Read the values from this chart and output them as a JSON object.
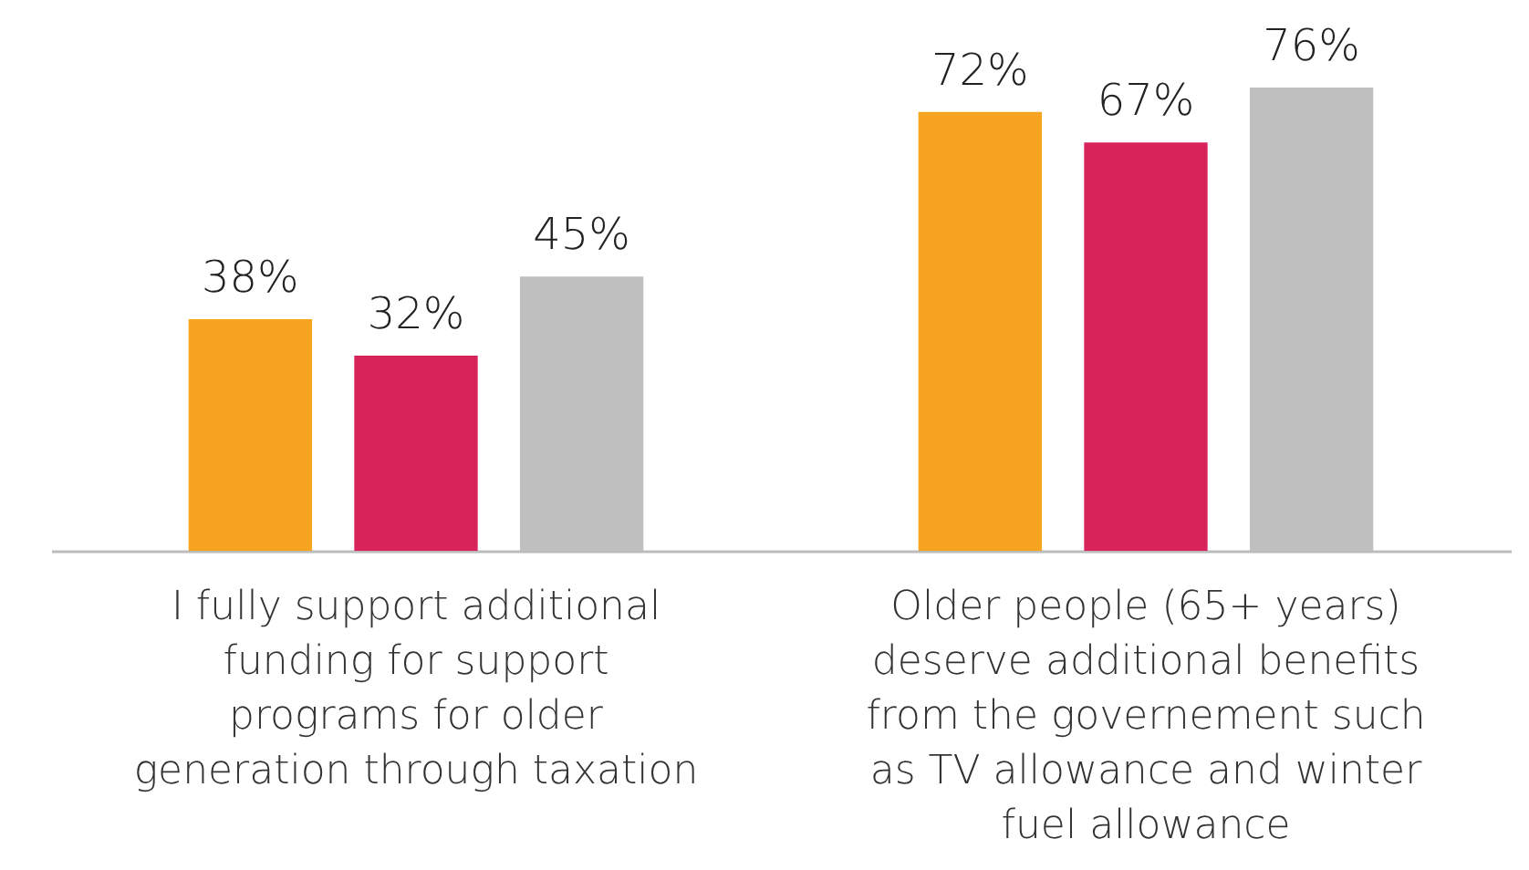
{
  "chart_data": {
    "type": "bar",
    "categories": [
      "I fully support additional funding for support programs for older generation through taxation",
      "Older people (65+ years) deserve additional benefits from the governement such as TV allowance and winter fuel allowance"
    ],
    "series": [
      {
        "color": "#f7a520",
        "values": [
          38,
          72
        ],
        "value_labels": [
          "38%",
          "72%"
        ]
      },
      {
        "color": "#d8225a",
        "values": [
          32,
          67
        ],
        "value_labels": [
          "32%",
          "67%"
        ]
      },
      {
        "color": "#bfbfbf",
        "values": [
          45,
          76
        ],
        "value_labels": [
          "45%",
          "76%"
        ]
      }
    ],
    "grid": false,
    "legend": false
  }
}
